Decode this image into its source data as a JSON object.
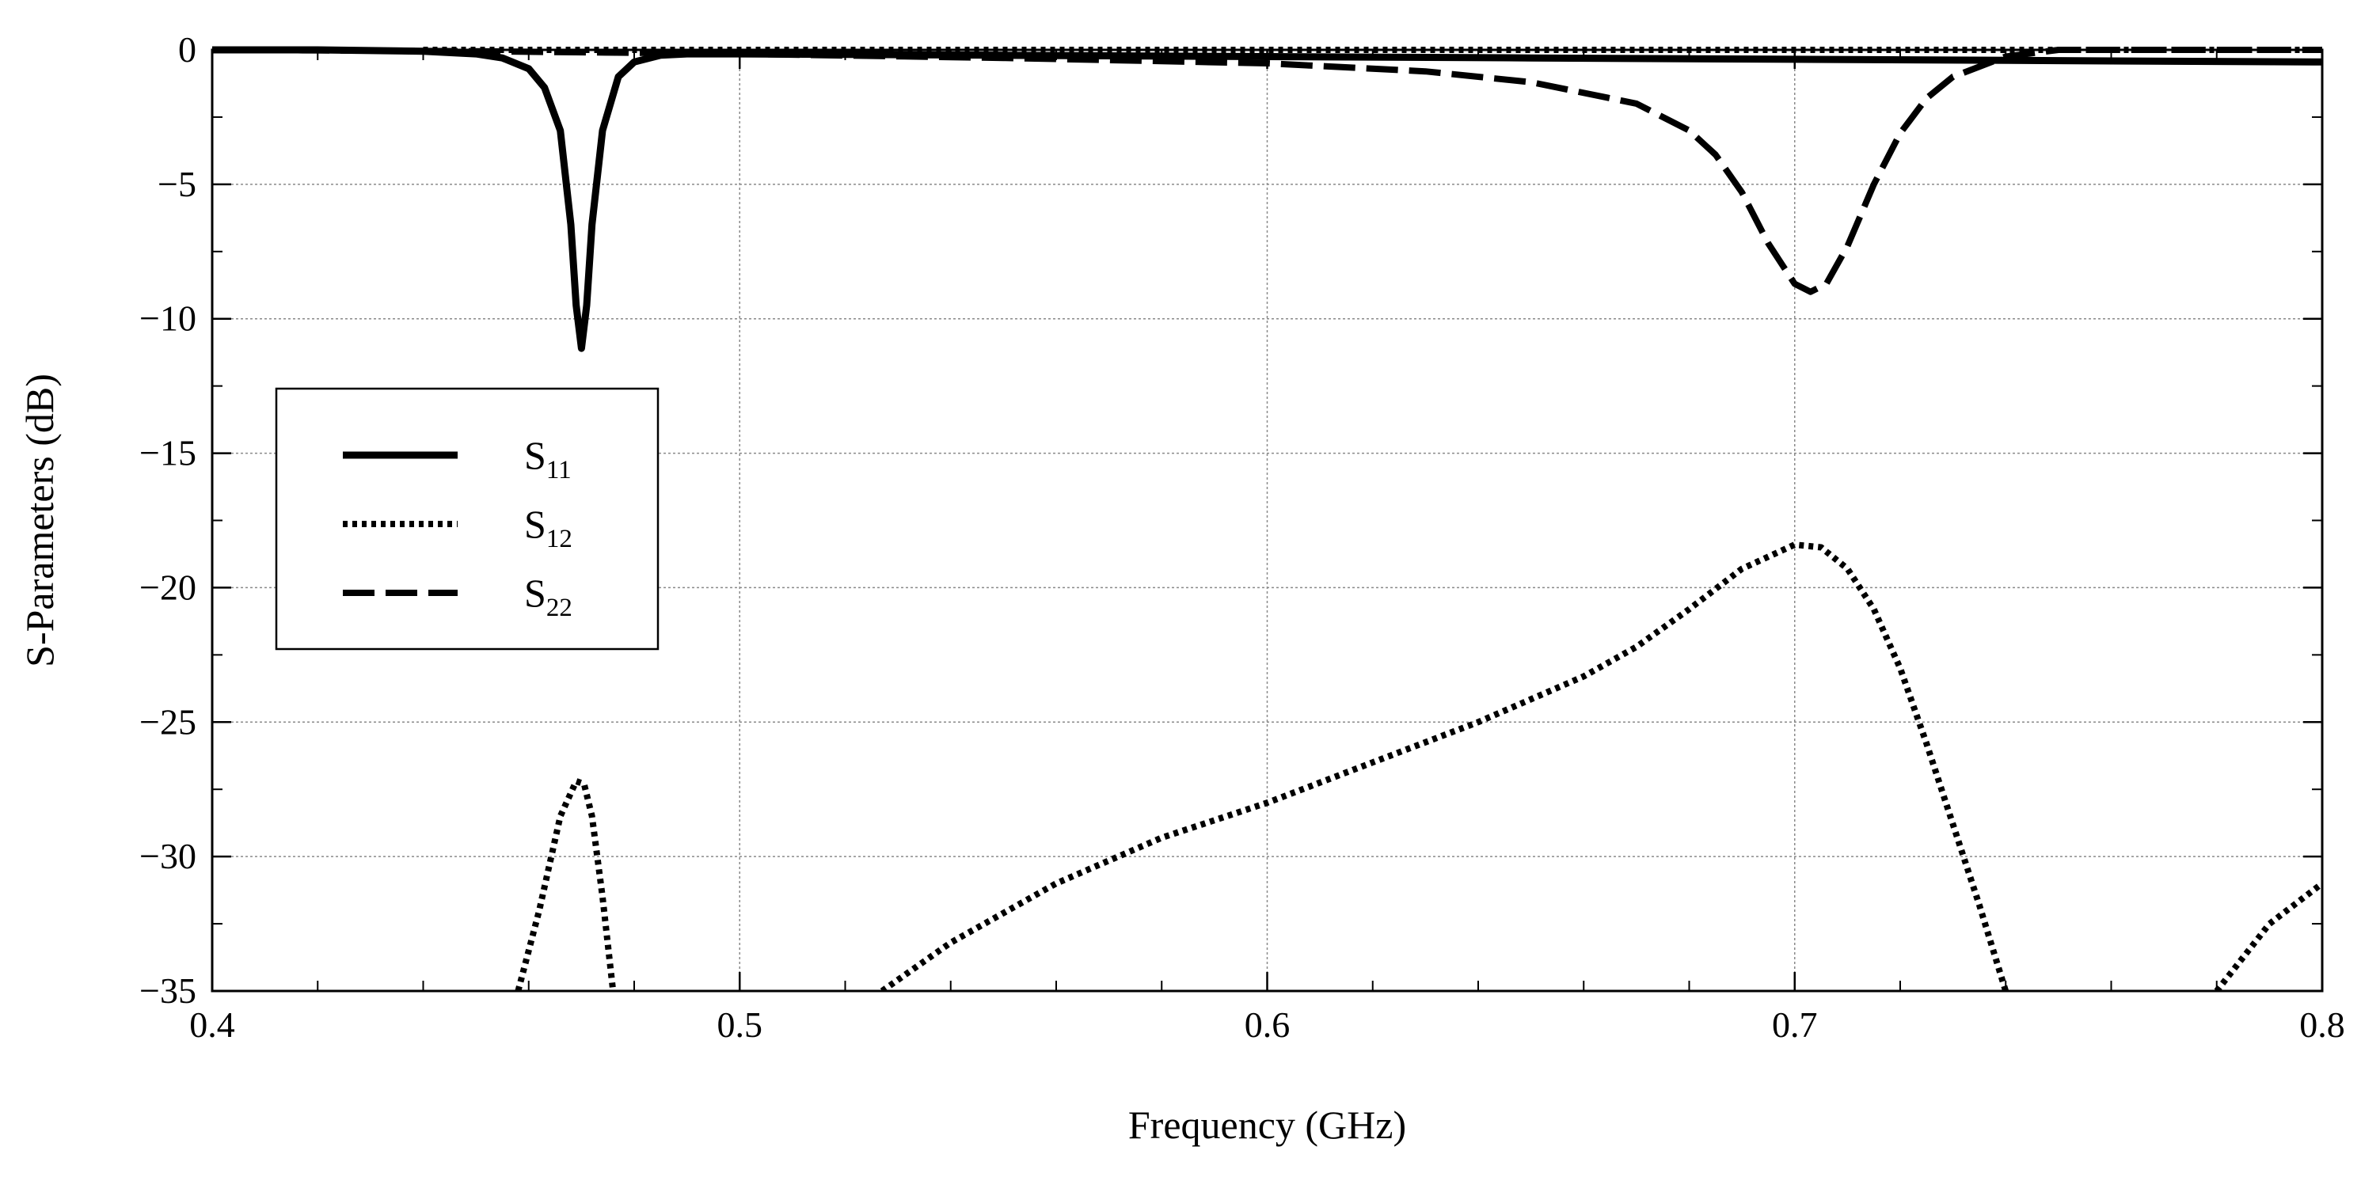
{
  "chart_data": {
    "type": "line",
    "title": "",
    "xlabel": "Frequency (GHz)",
    "ylabel": "S-Parameters (dB)",
    "xlim": [
      0.4,
      0.8
    ],
    "ylim": [
      -35,
      0
    ],
    "xticks": [
      "0.4",
      "0.5",
      "0.6",
      "0.7",
      "0.8"
    ],
    "yticks": [
      "0",
      "−5",
      "−10",
      "−15",
      "−20",
      "−25",
      "−30",
      "−35"
    ],
    "grid": true,
    "legend": "left",
    "series": [
      {
        "name": "S11",
        "name_main": "S",
        "name_sub": "11",
        "style": "solid",
        "x": [
          0.4,
          0.42,
          0.44,
          0.45,
          0.455,
          0.46,
          0.463,
          0.466,
          0.468,
          0.469,
          0.47,
          0.471,
          0.472,
          0.474,
          0.477,
          0.48,
          0.485,
          0.49,
          0.5,
          0.55,
          0.6,
          0.65,
          0.7,
          0.75,
          0.8
        ],
        "y": [
          0,
          0,
          -0.05,
          -0.15,
          -0.3,
          -0.7,
          -1.4,
          -3.0,
          -6.5,
          -9.5,
          -11.1,
          -9.5,
          -6.5,
          -3.0,
          -1.0,
          -0.45,
          -0.2,
          -0.15,
          -0.15,
          -0.2,
          -0.25,
          -0.3,
          -0.35,
          -0.4,
          -0.45
        ]
      },
      {
        "name": "S12",
        "name_main": "S",
        "name_sub": "12",
        "style": "dotted",
        "segments": [
          {
            "x": [
              0.458,
              0.462,
              0.466,
              0.469,
              0.4705,
              0.472,
              0.474,
              0.476
            ],
            "y": [
              -35,
              -32,
              -28.5,
              -27.2,
              -27.3,
              -28.5,
              -31.5,
              -35
            ]
          },
          {
            "x": [
              0.527,
              0.54,
              0.56,
              0.58,
              0.6,
              0.62,
              0.64,
              0.66,
              0.67,
              0.68,
              0.69,
              0.7,
              0.705,
              0.71,
              0.715,
              0.72,
              0.725,
              0.73,
              0.735,
              0.74
            ],
            "y": [
              -35,
              -33.2,
              -31,
              -29.3,
              -28,
              -26.5,
              -25,
              -23.3,
              -22.2,
              -20.8,
              -19.3,
              -18.4,
              -18.5,
              -19.3,
              -20.8,
              -23,
              -25.8,
              -28.8,
              -31.8,
              -35
            ]
          },
          {
            "x": [
              0.78,
              0.79,
              0.8
            ],
            "y": [
              -35,
              -32.5,
              -31
            ]
          },
          {
            "x": [
              0.44,
              0.5,
              0.55,
              0.6,
              0.65,
              0.7,
              0.75,
              0.8
            ],
            "y": [
              0,
              0,
              0,
              0,
              0,
              0,
              0,
              0
            ]
          }
        ]
      },
      {
        "name": "S22",
        "name_main": "S",
        "name_sub": "22",
        "style": "dashed",
        "x": [
          0.4,
          0.45,
          0.5,
          0.55,
          0.6,
          0.63,
          0.65,
          0.67,
          0.68,
          0.685,
          0.69,
          0.695,
          0.7,
          0.703,
          0.706,
          0.71,
          0.715,
          0.72,
          0.725,
          0.73,
          0.74,
          0.75,
          0.8
        ],
        "y": [
          0,
          -0.05,
          -0.15,
          -0.3,
          -0.5,
          -0.8,
          -1.2,
          -2.0,
          -3.0,
          -3.9,
          -5.3,
          -7.2,
          -8.7,
          -9.0,
          -8.7,
          -7.3,
          -5.0,
          -3.1,
          -1.8,
          -1.0,
          -0.25,
          0,
          0
        ]
      }
    ]
  }
}
